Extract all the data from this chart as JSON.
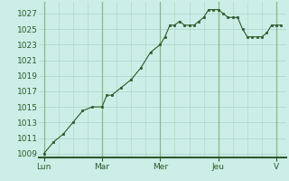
{
  "background_color": "#cceee6",
  "plot_bg_color": "#cceee6",
  "line_color": "#2d5a2d",
  "marker_color": "#2d5a2d",
  "grid_color": "#aad4c8",
  "grid_color_dark": "#88b888",
  "ylim": [
    1008.5,
    1028.5
  ],
  "yticks": [
    1009,
    1011,
    1013,
    1015,
    1017,
    1019,
    1021,
    1023,
    1025,
    1027
  ],
  "day_labels": [
    "Lun",
    "Mar",
    "Mer",
    "Jeu",
    "V"
  ],
  "day_positions": [
    0,
    48,
    96,
    144,
    192
  ],
  "xlim": [
    -4,
    200
  ],
  "minor_xtick_interval": 12,
  "x_values": [
    0,
    8,
    16,
    24,
    32,
    40,
    48,
    52,
    56,
    64,
    72,
    80,
    88,
    96,
    100,
    104,
    108,
    112,
    116,
    120,
    124,
    128,
    132,
    136,
    140,
    144,
    148,
    152,
    156,
    160,
    164,
    168,
    172,
    176,
    180,
    184,
    188,
    192,
    196
  ],
  "y_values": [
    1009.0,
    1010.5,
    1011.5,
    1013.0,
    1014.5,
    1015.0,
    1015.0,
    1016.5,
    1016.5,
    1017.5,
    1018.5,
    1020.0,
    1022.0,
    1023.0,
    1024.0,
    1025.5,
    1025.5,
    1026.0,
    1025.5,
    1025.5,
    1025.5,
    1026.0,
    1026.5,
    1027.5,
    1027.5,
    1027.5,
    1027.0,
    1026.5,
    1026.5,
    1026.5,
    1025.0,
    1024.0,
    1024.0,
    1024.0,
    1024.0,
    1024.5,
    1025.5,
    1025.5,
    1025.5
  ]
}
